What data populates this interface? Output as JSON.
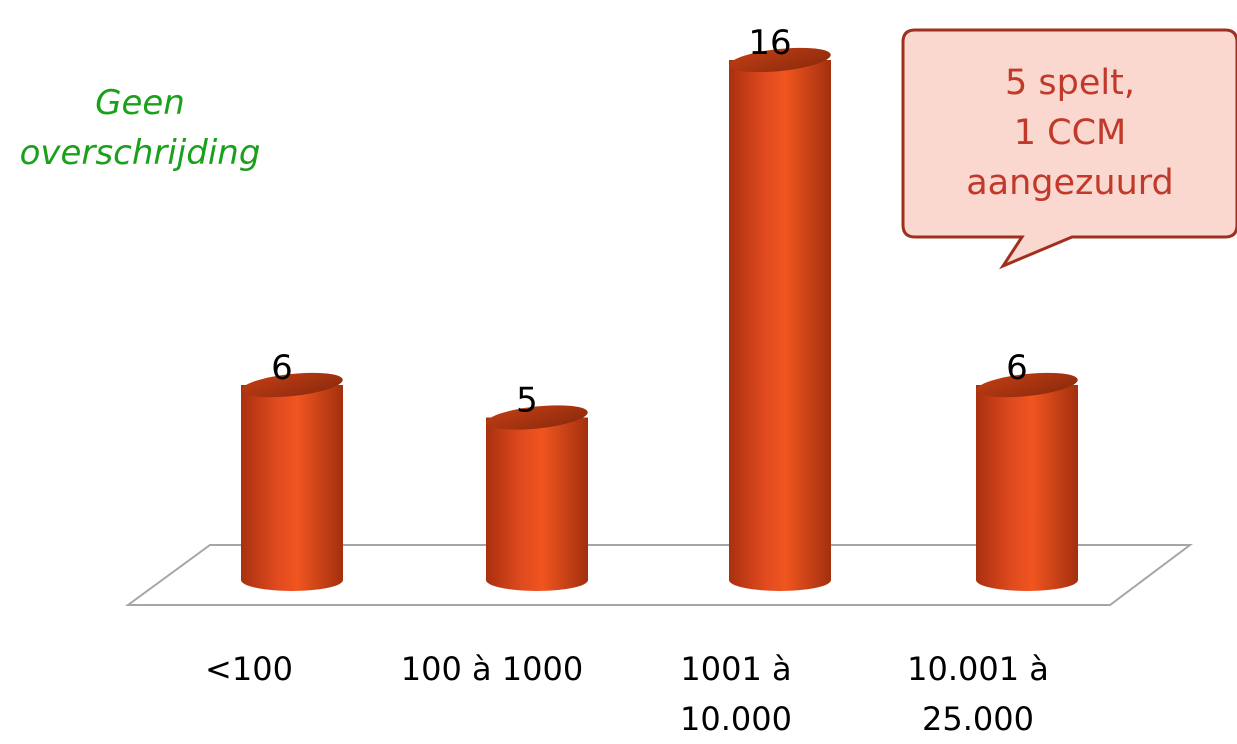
{
  "chart_data": {
    "type": "bar",
    "categories": [
      "<100",
      "100 à 1000",
      "1001 à 10.000",
      "10.001 à 25.000"
    ],
    "category_lines": [
      [
        "<100"
      ],
      [
        "100 à 1000"
      ],
      [
        "1001 à",
        "10.000"
      ],
      [
        "10.001 à",
        "25.000"
      ]
    ],
    "values": [
      6,
      5,
      16,
      6
    ],
    "data_labels": [
      "6",
      "5",
      "16",
      "6"
    ],
    "ylim": [
      0,
      16
    ],
    "title": "",
    "xlabel": "",
    "ylabel": "",
    "grid": false,
    "bar_color": "#d9451e"
  },
  "annotations": {
    "note_line1": "Geen",
    "note_line2": "overschrijding",
    "callout_line1": "5 spelt,",
    "callout_line2": "1 CCM",
    "callout_line3": "aangezuurd"
  },
  "colors": {
    "bar": "#d9451e",
    "bar_dark": "#8e2a10",
    "note": "#1aa01a",
    "callout_fill": "#fad8cf",
    "callout_border": "#a0301e",
    "callout_text": "#c0392b"
  }
}
